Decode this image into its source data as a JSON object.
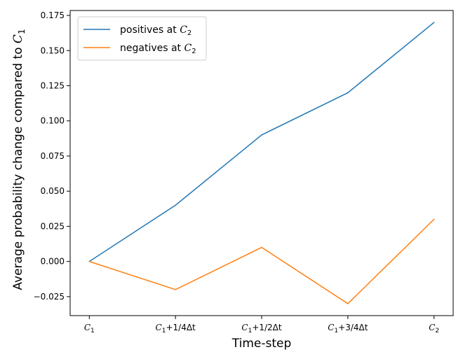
{
  "chart_data": {
    "type": "line",
    "categories": [
      "C1",
      "C1+1/4Δt",
      "C1+1/2Δt",
      "C1+3/4Δt",
      "C2"
    ],
    "category_labels": [
      {
        "base": "C",
        "sub": "1",
        "suffix": ""
      },
      {
        "base": "C",
        "sub": "1",
        "suffix": "+1/4Δt"
      },
      {
        "base": "C",
        "sub": "1",
        "suffix": "+1/2Δt"
      },
      {
        "base": "C",
        "sub": "1",
        "suffix": "+3/4Δt"
      },
      {
        "base": "C",
        "sub": "2",
        "suffix": ""
      }
    ],
    "series": [
      {
        "name": "positives at C2",
        "name_prefix": "positives at ",
        "name_math": "C",
        "name_sub": "2",
        "color": "#1f77b4",
        "values": [
          0.0,
          0.04,
          0.09,
          0.12,
          0.17
        ]
      },
      {
        "name": "negatives at C2",
        "name_prefix": "negatives at ",
        "name_math": "C",
        "name_sub": "2",
        "color": "#ff7f0e",
        "values": [
          0.0,
          -0.02,
          0.01,
          -0.03,
          0.03
        ]
      }
    ],
    "xlabel": "Time-step",
    "ylabel_prefix": "Average probability change compared to ",
    "ylabel_math": "C",
    "ylabel_sub": "1",
    "ylim": [
      -0.0385,
      0.1785
    ],
    "yticks": [
      -0.025,
      0.0,
      0.025,
      0.05,
      0.075,
      0.1,
      0.125,
      0.15,
      0.175
    ],
    "ytick_labels": [
      "−0.025",
      "0.000",
      "0.025",
      "0.050",
      "0.075",
      "0.100",
      "0.125",
      "0.150",
      "0.175"
    ],
    "grid": false,
    "legend_position": "top-left"
  }
}
